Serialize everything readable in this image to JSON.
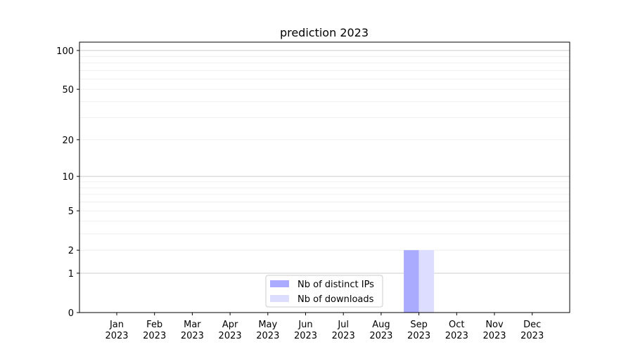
{
  "chart_data": {
    "type": "bar",
    "title": "prediction 2023",
    "xlabel": "",
    "ylabel": "",
    "y_scale": "log(1+y)",
    "ylim": [
      0,
      116
    ],
    "yticks": [
      0,
      1,
      2,
      5,
      10,
      20,
      50,
      100
    ],
    "grid": true,
    "legend_position": "lower-center",
    "categories": [
      [
        "Jan",
        "2023"
      ],
      [
        "Feb",
        "2023"
      ],
      [
        "Mar",
        "2023"
      ],
      [
        "Apr",
        "2023"
      ],
      [
        "May",
        "2023"
      ],
      [
        "Jun",
        "2023"
      ],
      [
        "Jul",
        "2023"
      ],
      [
        "Aug",
        "2023"
      ],
      [
        "Sep",
        "2023"
      ],
      [
        "Oct",
        "2023"
      ],
      [
        "Nov",
        "2023"
      ],
      [
        "Dec",
        "2023"
      ]
    ],
    "series": [
      {
        "name": "Nb of distinct IPs",
        "color": "#aaaaff",
        "values": [
          0,
          0,
          0,
          0,
          0,
          0,
          0,
          0,
          2,
          0,
          0,
          0
        ]
      },
      {
        "name": "Nb of downloads",
        "color": "#ddddff",
        "values": [
          0,
          0,
          0,
          0,
          0,
          0,
          0,
          0,
          2,
          0,
          0,
          0
        ]
      }
    ]
  }
}
